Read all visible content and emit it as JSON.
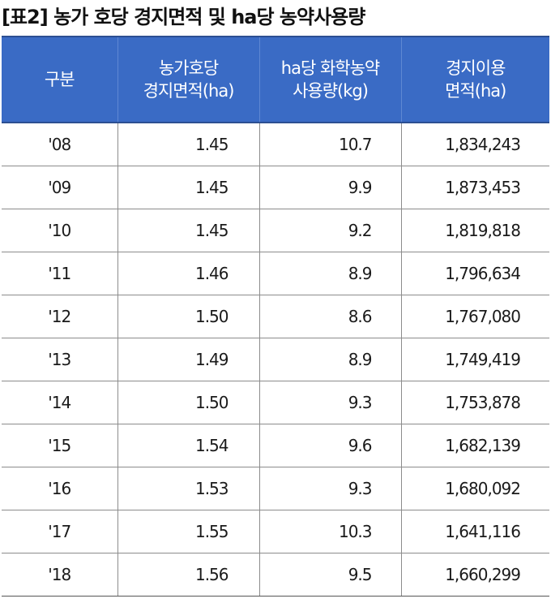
{
  "title": "[표2] 농가 호당 경지면적 및 ha당 농약사용량",
  "table": {
    "headers": [
      [
        "구분"
      ],
      [
        "농가호당",
        "경지면적(ha)"
      ],
      [
        "ha당 화학농약",
        "사용량(kg)"
      ],
      [
        "경지이용",
        "면적(ha)"
      ]
    ],
    "rows": [
      [
        "'08",
        "1.45",
        "10.7",
        "1,834,243"
      ],
      [
        "'09",
        "1.45",
        "9.9",
        "1,873,453"
      ],
      [
        "'10",
        "1.45",
        "9.2",
        "1,819,818"
      ],
      [
        "'11",
        "1.46",
        "8.9",
        "1,796,634"
      ],
      [
        "'12",
        "1.50",
        "8.6",
        "1,767,080"
      ],
      [
        "'13",
        "1.49",
        "8.9",
        "1,749,419"
      ],
      [
        "'14",
        "1.50",
        "9.3",
        "1,753,878"
      ],
      [
        "'15",
        "1.54",
        "9.6",
        "1,682,139"
      ],
      [
        "'16",
        "1.53",
        "9.3",
        "1,680,092"
      ],
      [
        "'17",
        "1.55",
        "10.3",
        "1,641,116"
      ],
      [
        "'18",
        "1.56",
        "9.5",
        "1,660,299"
      ]
    ]
  },
  "colors": {
    "header_bg": "#3a6bc5",
    "header_text": "#ffffff",
    "rule": "#8c8c8c"
  }
}
